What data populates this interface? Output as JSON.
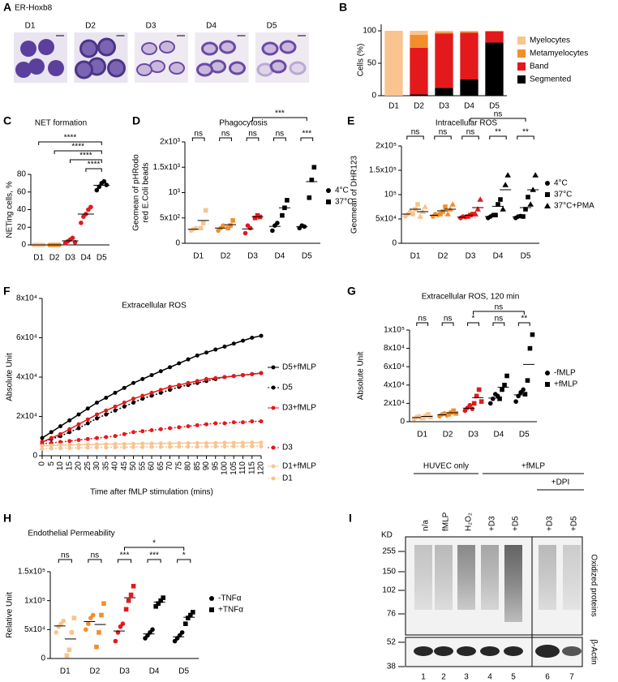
{
  "panel_labels": [
    "A",
    "B",
    "C",
    "D",
    "E",
    "F",
    "G",
    "H",
    "I"
  ],
  "panel_a": {
    "title": "ER-Hoxb8",
    "labels": [
      "D1",
      "D2",
      "D3",
      "D4",
      "D5"
    ]
  },
  "chart_data": [
    {
      "type": "stacked_bar",
      "ylabel": "Cells (%)",
      "categories": [
        "D1",
        "D2",
        "D3",
        "D4",
        "D5"
      ],
      "ylim": [
        0,
        110
      ],
      "yticks": [
        0,
        50,
        100
      ],
      "series": [
        {
          "name": "Myelocytes",
          "color": "#f9c48f",
          "values": [
            100,
            6,
            2,
            1,
            0
          ]
        },
        {
          "name": "Metamyelocytes",
          "color": "#f28e2b",
          "values": [
            0,
            20,
            2,
            2,
            1
          ]
        },
        {
          "name": "Band",
          "color": "#e3191c",
          "values": [
            0,
            72,
            84,
            72,
            17
          ]
        },
        {
          "name": "Segmented",
          "color": "#000000",
          "values": [
            0,
            2,
            12,
            25,
            82
          ]
        }
      ]
    },
    {
      "type": "strip",
      "title": "NET formation",
      "ylabel": "NETing cells, %",
      "categories": [
        "D1",
        "D2",
        "D3",
        "D4",
        "D5"
      ],
      "category_colors": [
        "#f9c48f",
        "#f28e2b",
        "#e3191c",
        "#e3191c",
        "#000000"
      ],
      "values": [
        [
          0,
          0,
          0,
          0,
          0
        ],
        [
          0,
          0,
          0,
          0,
          0
        ],
        [
          2,
          4,
          6,
          8,
          3
        ],
        [
          25,
          32,
          35,
          40,
          43
        ],
        [
          62,
          66,
          70,
          72,
          68
        ]
      ],
      "ylim": [
        0,
        80
      ],
      "yticks": [
        0,
        20,
        40,
        60,
        80
      ],
      "annotations": [
        "****",
        "****",
        "****",
        "****"
      ]
    },
    {
      "type": "strip",
      "title": "Phagocytosis",
      "ylabel": [
        "Geomean of pHRodo",
        "red E.Coli beads"
      ],
      "categories": [
        "D1",
        "D2",
        "D3",
        "D4",
        "D5"
      ],
      "category_colors": [
        "#f9c48f",
        "#f28e2b",
        "#e3191c",
        "#000000",
        "#000000"
      ],
      "series": [
        {
          "name": "4°C",
          "marker": "circle",
          "values": [
            [
              250,
              280,
              300
            ],
            [
              250,
              300,
              350
            ],
            [
              200,
              350,
              300
            ],
            [
              250,
              350,
              400
            ],
            [
              300,
              350,
              330
            ]
          ]
        },
        {
          "name": "37°C",
          "marker": "square",
          "values": [
            [
              300,
              400,
              650
            ],
            [
              300,
              350,
              450
            ],
            [
              500,
              550,
              520
            ],
            [
              550,
              700,
              850
            ],
            [
              900,
              1250,
              1500
            ]
          ]
        }
      ],
      "ylim": [
        0,
        2000
      ],
      "yticks": [
        0,
        {
          "value": 500,
          "label": "5x10²"
        },
        {
          "value": 1000,
          "label": "10³"
        },
        {
          "value": 1500,
          "label": "1.5x10³"
        },
        {
          "value": 2000,
          "label": "2x10³"
        }
      ],
      "annotations": [
        "ns",
        "ns",
        "ns",
        "ns",
        "***",
        "***"
      ]
    },
    {
      "type": "strip",
      "title": "Intracellular ROS",
      "ylabel": "Geomean of DHR123",
      "categories": [
        "D1",
        "D2",
        "D3",
        "D4",
        "D5"
      ],
      "category_colors": [
        "#f9c48f",
        "#f28e2b",
        "#e3191c",
        "#000000",
        "#000000"
      ],
      "series": [
        {
          "name": "4°C",
          "marker": "circle",
          "values": [
            [
              55000,
              60000,
              65000
            ],
            [
              55000,
              60000,
              58000
            ],
            [
              52000,
              55000,
              54000
            ],
            [
              52000,
              55000,
              58000
            ],
            [
              52000,
              55000,
              56000
            ]
          ]
        },
        {
          "name": "37°C",
          "marker": "square",
          "values": [
            [
              60000,
              70000,
              80000
            ],
            [
              60000,
              65000,
              75000
            ],
            [
              55000,
              58000,
              60000
            ],
            [
              58000,
              80000,
              90000
            ],
            [
              55000,
              70000,
              95000
            ]
          ]
        },
        {
          "name": "37°C+PMA",
          "marker": "triangle",
          "values": [
            [
              55000,
              65000,
              75000
            ],
            [
              60000,
              70000,
              80000
            ],
            [
              60000,
              70000,
              90000
            ],
            [
              70000,
              120000,
              140000
            ],
            [
              80000,
              110000,
              140000
            ]
          ]
        }
      ],
      "ylim": [
        0,
        200000
      ],
      "yticks": [
        0,
        {
          "value": 50000,
          "label": "5x10⁴"
        },
        {
          "value": 100000,
          "label": "10⁵"
        },
        {
          "value": 150000,
          "label": "1.5x10⁵"
        },
        {
          "value": 200000,
          "label": "2x10⁵"
        }
      ],
      "annotations": [
        "ns",
        "ns",
        "ns",
        "**",
        "**",
        "ns"
      ]
    },
    {
      "type": "line",
      "title": "Extracellular ROS",
      "ylabel": "Absolute Unit",
      "xlabel": "Time after fMLP stimulation (mins)",
      "x": [
        0,
        5,
        10,
        15,
        20,
        25,
        30,
        35,
        40,
        45,
        50,
        55,
        60,
        65,
        70,
        75,
        80,
        85,
        90,
        95,
        100,
        105,
        110,
        115,
        120
      ],
      "xlim": [
        0,
        120
      ],
      "xticks": [
        0,
        5,
        10,
        15,
        20,
        25,
        30,
        35,
        40,
        45,
        50,
        55,
        60,
        65,
        70,
        75,
        80,
        85,
        90,
        95,
        100,
        105,
        110,
        115,
        120
      ],
      "ylim": [
        0,
        80000
      ],
      "yticks": [
        0,
        {
          "value": 20000,
          "label": "2x10⁴"
        },
        {
          "value": 40000,
          "label": "4x10⁴"
        },
        {
          "value": 60000,
          "label": "6x10⁴"
        },
        {
          "value": 80000,
          "label": "8x10⁴"
        }
      ],
      "series": [
        {
          "name": "D5+fMLP",
          "color": "#000000",
          "line_style": "solid",
          "values": [
            9000,
            12000,
            15000,
            18000,
            21000,
            24000,
            27000,
            29500,
            32000,
            34500,
            37000,
            39000,
            41000,
            43000,
            45000,
            47000,
            49000,
            51000,
            52500,
            54000,
            55500,
            57000,
            58500,
            60000,
            61000
          ]
        },
        {
          "name": "D5",
          "color": "#000000",
          "line_style": "dotted",
          "values": [
            7000,
            8500,
            10000,
            12000,
            14000,
            16500,
            19000,
            21000,
            23000,
            25000,
            27000,
            29000,
            30500,
            32000,
            33500,
            35000,
            36000,
            37000,
            38000,
            39000,
            40000,
            40500,
            41000,
            41500,
            42000
          ]
        },
        {
          "name": "D3+fMLP",
          "color": "#e3191c",
          "line_style": "solid",
          "values": [
            7000,
            9000,
            11000,
            13500,
            16000,
            18500,
            21000,
            23000,
            25000,
            27000,
            29000,
            30500,
            32000,
            33500,
            35000,
            36000,
            37000,
            38000,
            39000,
            39500,
            40000,
            40500,
            41000,
            41500,
            42000
          ]
        },
        {
          "name": "D3",
          "color": "#e3191c",
          "line_style": "dotted",
          "values": [
            6000,
            6500,
            7000,
            7500,
            8000,
            8500,
            9000,
            9500,
            10000,
            11000,
            12000,
            12500,
            13000,
            13500,
            14000,
            14500,
            15000,
            15500,
            16000,
            16500,
            16500,
            17000,
            17000,
            17500,
            17500
          ]
        },
        {
          "name": "D1+fMLP",
          "color": "#f9c48f",
          "line_style": "solid",
          "values": [
            5000,
            5200,
            5400,
            5500,
            5600,
            5700,
            5800,
            5900,
            6000,
            6000,
            6100,
            6200,
            6200,
            6300,
            6300,
            6400,
            6400,
            6500,
            6500,
            6500,
            6600,
            6600,
            6600,
            6700,
            6700
          ]
        },
        {
          "name": "D1",
          "color": "#f9c48f",
          "line_style": "dotted",
          "values": [
            3500,
            3700,
            3800,
            3900,
            4000,
            4100,
            4200,
            4200,
            4300,
            4300,
            4400,
            4400,
            4500,
            4500,
            4500,
            4600,
            4600,
            4600,
            4700,
            4700,
            4700,
            4800,
            4800,
            4800,
            4800
          ]
        }
      ]
    },
    {
      "type": "strip",
      "title": "Extracellular ROS, 120 min",
      "ylabel": "Absolute Unit",
      "categories": [
        "D1",
        "D2",
        "D3",
        "D4",
        "D5"
      ],
      "category_colors": [
        "#f9c48f",
        "#f28e2b",
        "#e3191c",
        "#000000",
        "#000000"
      ],
      "series": [
        {
          "name": "-fMLP",
          "marker": "circle",
          "values": [
            [
              3000,
              5000,
              6000,
              4000
            ],
            [
              6000,
              8000,
              9000,
              7000
            ],
            [
              12000,
              15000,
              18000,
              14000
            ],
            [
              20000,
              25000,
              30000,
              28000
            ],
            [
              22000,
              28000,
              32000,
              35000
            ]
          ]
        },
        {
          "name": "+fMLP",
          "marker": "square",
          "values": [
            [
              4000,
              6000,
              8000,
              5000
            ],
            [
              8000,
              10000,
              12000,
              9000
            ],
            [
              20000,
              28000,
              35000,
              22000
            ],
            [
              25000,
              35000,
              40000,
              50000
            ],
            [
              30000,
              45000,
              80000,
              95000
            ]
          ]
        }
      ],
      "ylim": [
        0,
        100000
      ],
      "yticks": [
        0,
        {
          "value": 20000,
          "label": "2x10⁴"
        },
        {
          "value": 40000,
          "label": "4x10⁴"
        },
        {
          "value": 60000,
          "label": "6x10⁴"
        },
        {
          "value": 80000,
          "label": "8x10⁴"
        },
        {
          "value": 100000,
          "label": "1x10⁵"
        }
      ],
      "annotations": [
        "ns",
        "ns",
        "*",
        "ns",
        "**",
        "ns"
      ]
    },
    {
      "type": "strip",
      "title": "Endothelial Permeability",
      "ylabel": "Relative Unit",
      "categories": [
        "D1",
        "D2",
        "D3",
        "D4",
        "D5"
      ],
      "category_colors": [
        "#f9c48f",
        "#f28e2b",
        "#e3191c",
        "#000000",
        "#000000"
      ],
      "series": [
        {
          "name": "-TNFα",
          "marker": "circle",
          "values": [
            [
              45000,
              55000,
              60000,
              65000
            ],
            [
              50000,
              60000,
              70000,
              75000
            ],
            [
              30000,
              45000,
              55000,
              60000
            ],
            [
              35000,
              40000,
              45000,
              50000
            ],
            [
              30000,
              35000,
              40000,
              45000
            ]
          ]
        },
        {
          "name": "+TNFα",
          "marker": "square",
          "values": [
            [
              5000,
              15000,
              45000,
              70000
            ],
            [
              20000,
              45000,
              75000,
              95000
            ],
            [
              85000,
              100000,
              110000,
              125000
            ],
            [
              90000,
              95000,
              100000,
              105000
            ],
            [
              60000,
              70000,
              75000,
              80000
            ]
          ]
        }
      ],
      "ylim": [
        0,
        150000
      ],
      "yticks": [
        0,
        {
          "value": 50000,
          "label": "5x10⁴"
        },
        {
          "value": 100000,
          "label": "1x10⁵"
        },
        {
          "value": 150000,
          "label": "1.5x10⁵"
        }
      ],
      "annotations": [
        "ns",
        "ns",
        "***",
        "***",
        "*",
        "*"
      ]
    }
  ],
  "panel_i": {
    "groups": [
      "HUVEC only",
      "+fMLP",
      "+DPI"
    ],
    "lanes": [
      "n/a",
      "fMLP",
      "H₂O₂",
      "+D3",
      "+D5",
      "+D3",
      "+D5"
    ],
    "kd_label": "KD",
    "markers": [
      255,
      150,
      102,
      76,
      52,
      38
    ],
    "blot_labels": [
      "Oxidized proteins",
      "β-Actin"
    ],
    "lane_numbers": [
      "1",
      "2",
      "3",
      "4",
      "5",
      "6",
      "7"
    ]
  }
}
